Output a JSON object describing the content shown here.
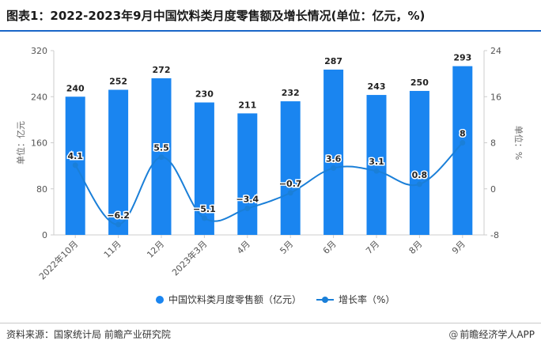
{
  "title": "图表1：2022-2023年9月中国饮料类月度零售额及增长情况(单位：亿元，%)",
  "source": "资料来源：国家统计局 前瞻产业研究院",
  "brand": "前瞻经济学人APP",
  "colors": {
    "bar": "#1a85f0",
    "line": "#1a7fd8",
    "marker": "#1a7fd8",
    "axis": "#cccccc",
    "accent": "#1a66c8"
  },
  "icons": {
    "brand": "at-sign-icon"
  },
  "chart_data": {
    "type": "bar",
    "categories": [
      "2022年10月",
      "11月",
      "12月",
      "2023年3月",
      "4月",
      "5月",
      "6月",
      "7月",
      "8月",
      "9月"
    ],
    "series": [
      {
        "name": "中国饮料类月度零售额（亿元）",
        "type": "bar",
        "axis": "left",
        "values": [
          240,
          252,
          272,
          230,
          211,
          232,
          287,
          243,
          250,
          293
        ],
        "labels": [
          "240",
          "252",
          "272",
          "230",
          "211",
          "232",
          "287",
          "243",
          "250",
          "293"
        ]
      },
      {
        "name": "增长率（%）",
        "type": "line",
        "axis": "right",
        "smooth": true,
        "values": [
          4.1,
          -6.2,
          5.5,
          -5.1,
          -3.4,
          -0.7,
          3.6,
          3.1,
          0.8,
          8
        ],
        "labels": [
          "4.1",
          "−6.2",
          "5.5",
          "−5.1",
          "−3.4",
          "−0.7",
          "3.6",
          "3.1",
          "0.8",
          "8"
        ]
      }
    ],
    "ylabel": "单位：亿元",
    "ylabel_right": "单位：%",
    "ylim": [
      0,
      320
    ],
    "ylim_right": [
      -8,
      24
    ],
    "yticks": [
      0,
      80,
      160,
      240,
      320
    ],
    "yticks_right": [
      -8,
      0,
      8,
      16,
      24
    ],
    "ytick_labels": [
      "0",
      "80",
      "160",
      "240",
      "320"
    ],
    "ytick_labels_right": [
      "-8",
      "0",
      "8",
      "16",
      "24"
    ],
    "grid": false,
    "legend": "bottom-center"
  }
}
